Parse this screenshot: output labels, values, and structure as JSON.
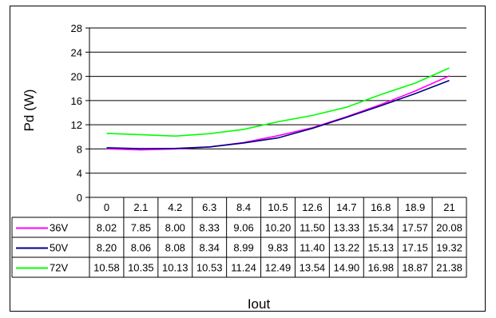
{
  "chart_data": {
    "type": "line",
    "title": "",
    "xlabel": "Iout",
    "ylabel": "Pd (W)",
    "x": [
      "0",
      "2.1",
      "4.2",
      "6.3",
      "8.4",
      "10.5",
      "12.6",
      "14.7",
      "16.8",
      "18.9",
      "21"
    ],
    "ylim": [
      0,
      28
    ],
    "yticks": [
      "0",
      "4",
      "8",
      "12",
      "16",
      "20",
      "24",
      "28"
    ],
    "grid": true,
    "legend": "data-table",
    "series": [
      {
        "name": "36V",
        "color": "#ff00ff",
        "labels": [
          "8.02",
          "7.85",
          "8.00",
          "8.33",
          "9.06",
          "10.20",
          "11.50",
          "13.33",
          "15.34",
          "17.57",
          "20.08"
        ],
        "values": [
          8.02,
          7.85,
          8.0,
          8.33,
          9.06,
          10.2,
          11.5,
          13.33,
          15.34,
          17.57,
          20.08
        ]
      },
      {
        "name": "50V",
        "color": "#000080",
        "labels": [
          "8.20",
          "8.06",
          "8.08",
          "8.34",
          "8.99",
          "9.83",
          "11.40",
          "13.22",
          "15.13",
          "17.15",
          "19.32"
        ],
        "values": [
          8.2,
          8.06,
          8.08,
          8.34,
          8.99,
          9.83,
          11.4,
          13.22,
          15.13,
          17.15,
          19.32
        ]
      },
      {
        "name": "72V",
        "color": "#00ff00",
        "labels": [
          "10.58",
          "10.35",
          "10.13",
          "10.53",
          "11.24",
          "12.49",
          "13.54",
          "14.90",
          "16.98",
          "18.87",
          "21.38"
        ],
        "values": [
          10.58,
          10.35,
          10.13,
          10.53,
          11.24,
          12.49,
          13.54,
          14.9,
          16.98,
          18.87,
          21.38
        ]
      }
    ]
  }
}
